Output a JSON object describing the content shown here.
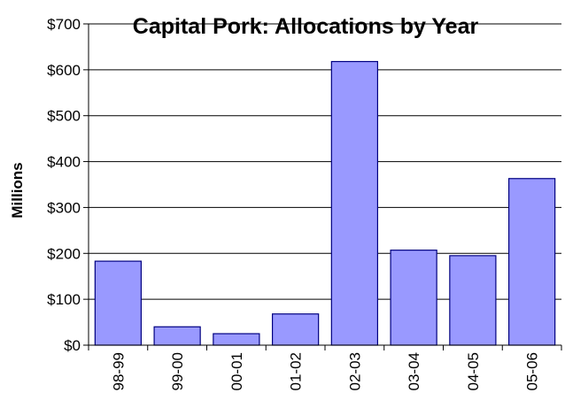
{
  "chart_data": {
    "type": "bar",
    "title": "Capital Pork: Allocations by Year",
    "ylabel": "Millions",
    "xlabel": "",
    "categories": [
      "98-99",
      "99-00",
      "00-01",
      "01-02",
      "02-03",
      "03-04",
      "04-05",
      "05-06"
    ],
    "values": [
      183,
      40,
      25,
      68,
      618,
      207,
      195,
      363
    ],
    "ylim": [
      0,
      700
    ],
    "yticks": [
      0,
      100,
      200,
      300,
      400,
      500,
      600,
      700
    ],
    "ytick_labels": [
      "$0",
      "$100",
      "$200",
      "$300",
      "$400",
      "$500",
      "$600",
      "$700"
    ],
    "grid": true,
    "legend": "none",
    "colors": {
      "bar_fill": "#9999ff",
      "bar_edge": "#000080"
    }
  }
}
